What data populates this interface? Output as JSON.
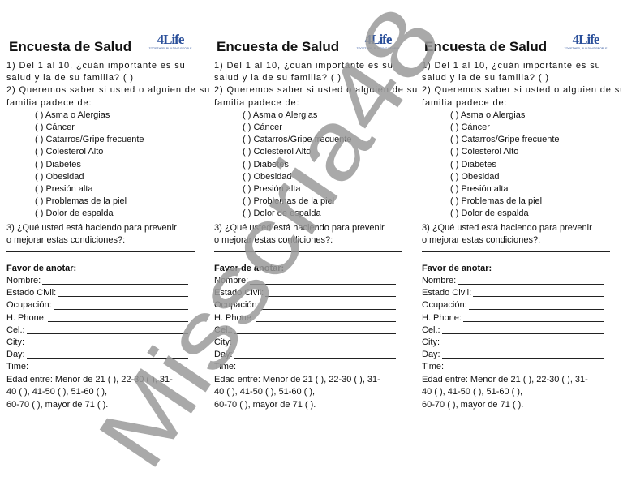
{
  "survey": {
    "title": "Encuesta de Salud",
    "logo_text": "4Life",
    "logo_tagline": "TOGETHER, BUILDING PEOPLE",
    "q1": [
      "1) Del 1 al 10, ¿cuán importante es su",
      "salud y la de su familia? ( )"
    ],
    "q2": [
      "2) Queremos saber si usted o alguien de su",
      "familia padece de:"
    ],
    "options": [
      "( ) Asma o Alergias",
      "( ) Cáncer",
      "( ) Catarros/Gripe frecuente",
      "( ) Colesterol Alto",
      "( ) Diabetes",
      "( ) Obesidad",
      "( ) Presión alta",
      "( ) Problemas de la piel",
      "( ) Dolor de espalda"
    ],
    "q3": [
      "3) ¿Qué usted está haciendo para prevenir",
      "o mejorar estas condiciones?:"
    ],
    "favor": "Favor de anotar:",
    "fields": [
      "Nombre:",
      "Estado Civil:",
      "Ocupación:",
      "H. Phone:",
      "Cel.:",
      "City:",
      "Day:",
      "Time:"
    ],
    "edad": [
      "Edad entre: Menor de 21 ( ), 22-30 ( ), 31-",
      "40 ( ), 41-50 ( ), 51-60 ( ),",
      "60-70 ( ), mayor de 71 ( )."
    ]
  },
  "watermark": "Misscria48",
  "colors": {
    "logo": "#2a4f9a",
    "watermark": "#9a9a9a"
  }
}
